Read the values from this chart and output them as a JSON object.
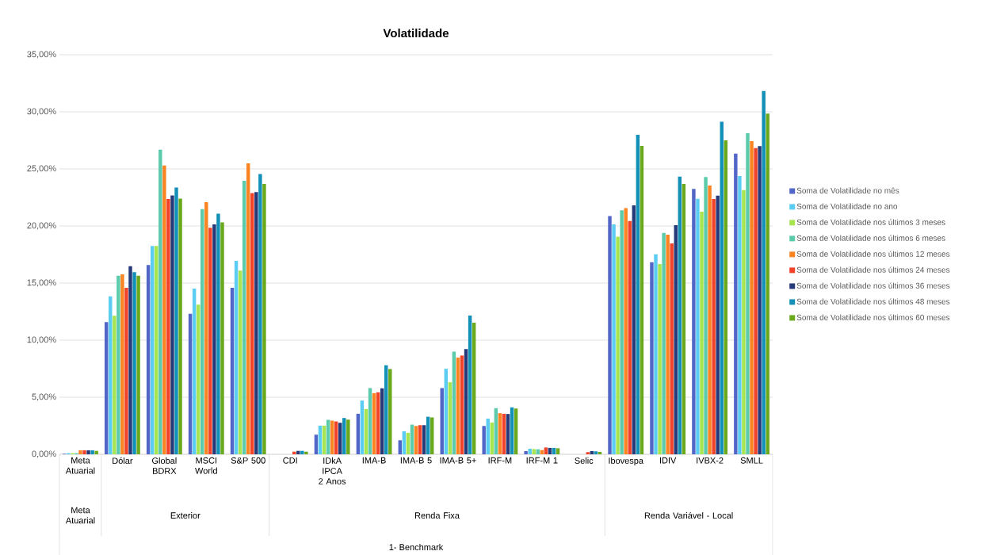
{
  "chart_data": {
    "type": "bar",
    "title": "Volatilidade",
    "categories": [
      "Meta Atuarial",
      "Dólar",
      "Global BDRX",
      "MSCI World",
      "S&P 500",
      "CDI",
      "IDkA IPCA 2 Anos",
      "IMA-B",
      "IMA-B 5",
      "IMA-B 5+",
      "IRF-M",
      "IRF-M 1",
      "Selic",
      "Ibovespa",
      "IDIV",
      "IVBX-2",
      "SMLL"
    ],
    "series": [
      {
        "name": "Soma de Volatilidade no mês",
        "color": "#5266c8",
        "values": [
          0.05,
          11.58,
          16.58,
          12.31,
          14.59,
          0,
          1.72,
          3.55,
          1.23,
          5.8,
          2.48,
          0.28,
          0,
          20.86,
          16.83,
          23.24,
          26.34
        ]
      },
      {
        "name": "Soma de Volatilidade no ano",
        "color": "#5bcdf2",
        "values": [
          0.1,
          13.84,
          18.25,
          14.52,
          16.94,
          0,
          2.51,
          4.71,
          2.02,
          7.49,
          3.13,
          0.49,
          0,
          20.14,
          17.52,
          22.38,
          24.38
        ]
      },
      {
        "name": "Soma de Volatilidade nos últimos 3 meses",
        "color": "#a6e550",
        "values": [
          0.1,
          12.14,
          18.25,
          13.11,
          16.09,
          0,
          2.51,
          3.97,
          1.88,
          6.31,
          2.78,
          0.46,
          0,
          19.07,
          16.67,
          21.25,
          23.15
        ]
      },
      {
        "name": "Soma de Volatilidade nos últimos 6 meses",
        "color": "#5ccbab",
        "values": [
          0.1,
          15.64,
          26.69,
          21.47,
          23.96,
          0,
          3.02,
          5.8,
          2.6,
          9.0,
          4.04,
          0.44,
          0,
          21.37,
          19.4,
          24.28,
          28.13
        ]
      },
      {
        "name": "Soma de Volatilidade nos últimos 12 meses",
        "color": "#fb8422",
        "values": [
          0.35,
          15.76,
          25.3,
          22.08,
          25.49,
          0,
          2.95,
          5.36,
          2.48,
          8.47,
          3.6,
          0.37,
          0,
          21.57,
          19.24,
          23.54,
          27.43
        ]
      },
      {
        "name": "Soma de Volatilidade nos últimos 24 meses",
        "color": "#f0432a",
        "values": [
          0.35,
          14.59,
          22.36,
          19.85,
          22.88,
          0.23,
          2.88,
          5.43,
          2.55,
          8.65,
          3.55,
          0.6,
          0.19,
          20.44,
          18.47,
          22.36,
          26.83
        ]
      },
      {
        "name": "Soma de Volatilidade nos últimos 36 meses",
        "color": "#263a7a",
        "values": [
          0.35,
          16.47,
          22.67,
          20.13,
          22.97,
          0.3,
          2.76,
          5.78,
          2.55,
          9.21,
          3.53,
          0.56,
          0.28,
          21.81,
          20.07,
          22.66,
          26.99
        ]
      },
      {
        "name": "Soma de Volatilidade nos últimos 48 meses",
        "color": "#1390b8",
        "values": [
          0.35,
          15.95,
          23.37,
          21.07,
          24.55,
          0.3,
          3.18,
          7.8,
          3.29,
          12.16,
          4.11,
          0.56,
          0.26,
          27.99,
          24.33,
          29.14,
          31.83
        ]
      },
      {
        "name": "Soma de Volatilidade nos últimos 60 meses",
        "color": "#6aa91c",
        "values": [
          0.3,
          15.64,
          22.39,
          20.32,
          23.68,
          0.23,
          3.04,
          7.47,
          3.23,
          11.53,
          4.01,
          0.53,
          0.21,
          27.01,
          23.68,
          27.5,
          29.84
        ]
      }
    ],
    "ylim": [
      0,
      35
    ],
    "yticks": [
      {
        "value": 0,
        "label": "0,00%"
      },
      {
        "value": 5,
        "label": "5,00%"
      },
      {
        "value": 10,
        "label": "10,00%"
      },
      {
        "value": 15,
        "label": "15,00%"
      },
      {
        "value": 20,
        "label": "20,00%"
      },
      {
        "value": 25,
        "label": "25,00%"
      },
      {
        "value": 30,
        "label": "30,00%"
      },
      {
        "value": 35,
        "label": "35,00%"
      }
    ],
    "grid": "y",
    "legend": "right",
    "annotations": [
      "Meta Atuarial",
      "Exterior",
      "Renda Fixa",
      "Renda Variável - Local",
      "1- Benchmark"
    ]
  }
}
